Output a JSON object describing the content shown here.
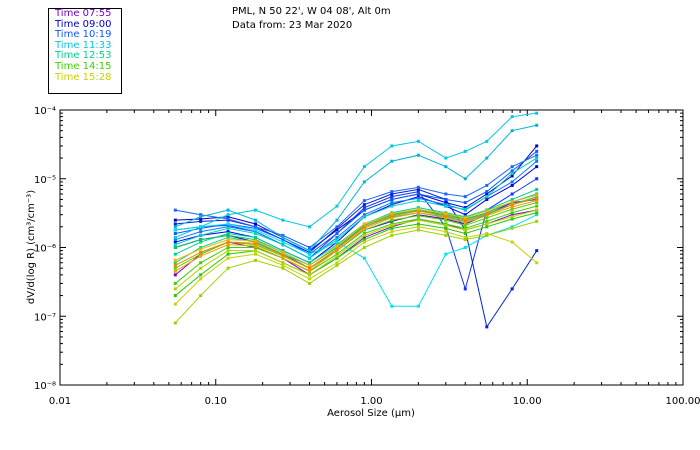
{
  "header": {
    "site": "PML, N 50 22', W 04 08', Alt 0m",
    "data_from": "Data from: 23 Mar 2020"
  },
  "legend": [
    {
      "label": "Time 07:55",
      "color": "#7a00c8"
    },
    {
      "label": "Time 09:00",
      "color": "#0000cc"
    },
    {
      "label": "Time 10:19",
      "color": "#0a5aff"
    },
    {
      "label": "Time 11:33",
      "color": "#00c8e6"
    },
    {
      "label": "Time 12:53",
      "color": "#00d28c"
    },
    {
      "label": "Time 14:15",
      "color": "#3cd200"
    },
    {
      "label": "Time 15:28",
      "color": "#c8d200"
    }
  ],
  "chart_data": {
    "type": "line",
    "title": "PML, N 50 22', W 04 08', Alt 0m",
    "subtitle": "Data from: 23 Mar 2020",
    "xlabel": "Aerosol Size (µm)",
    "ylabel": "dV/d(log R) (cm³/cm⁻³)",
    "xscale": "log",
    "yscale": "log",
    "xlim": [
      0.01,
      100
    ],
    "ylim": [
      1e-08,
      0.0001
    ],
    "x_ticks": [
      0.01,
      0.1,
      1,
      10,
      100
    ],
    "x_tick_labels": [
      "0.01",
      "0.10",
      "1.00",
      "10.00",
      "100.00"
    ],
    "y_ticks": [
      1e-08,
      1e-07,
      1e-06,
      1e-05,
      0.0001
    ],
    "y_tick_labels": [
      "10⁻⁸",
      "10⁻⁷",
      "10⁻⁶",
      "10⁻⁵",
      "10⁻⁴"
    ],
    "size_bins": [
      0.055,
      0.08,
      0.12,
      0.18,
      0.27,
      0.4,
      0.6,
      0.9,
      1.35,
      2.0,
      3.0,
      4.0,
      5.5,
      8.0,
      11.5
    ],
    "series": [
      {
        "name": "Time 07:55",
        "color": "#7a00c8",
        "values": [
          4e-07,
          8e-07,
          1.2e-06,
          1e-06,
          7e-07,
          4e-07,
          7e-07,
          1.4e-06,
          2e-06,
          2.6e-06,
          2.2e-06,
          1.8e-06,
          2.2e-06,
          3e-06,
          3.5e-06
        ]
      },
      {
        "name": "Time 07:55",
        "color": "#3a00d8",
        "values": [
          1e-06,
          1.3e-06,
          1.5e-06,
          1.2e-06,
          8e-07,
          5e-07,
          9e-07,
          1.8e-06,
          2.4e-06,
          3e-06,
          2.6e-06,
          2.2e-06,
          3e-06,
          4.5e-06,
          5e-06
        ]
      },
      {
        "name": "Time 09:00",
        "color": "#0000cc",
        "values": [
          2.5e-06,
          2.6e-06,
          2.8e-06,
          2.2e-06,
          1.4e-06,
          9e-07,
          1.8e-06,
          3.5e-06,
          5e-06,
          6e-06,
          4.5e-06,
          3.8e-06,
          6e-06,
          1.1e-05,
          3e-05
        ]
      },
      {
        "name": "Time 09:00",
        "color": "#0000ee",
        "values": [
          1.2e-06,
          1.5e-06,
          1.7e-06,
          1.4e-06,
          9e-07,
          6e-07,
          1.2e-06,
          2.8e-06,
          4.2e-06,
          5.5e-06,
          4e-06,
          3e-06,
          5e-06,
          8e-06,
          1.5e-05
        ]
      },
      {
        "name": "Time 09:00",
        "color": "#1430ff",
        "values": [
          1.8e-06,
          2e-06,
          2.1e-06,
          1.7e-06,
          1.1e-06,
          7e-07,
          1.6e-06,
          3.8e-06,
          5.5e-06,
          6.5e-06,
          2e-06,
          2.5e-07,
          3.5e-06,
          6e-06,
          1e-05
        ]
      },
      {
        "name": "Time 09:00",
        "color": "#0020e0",
        "values": [
          2.2e-06,
          2.4e-06,
          2.5e-06,
          2e-06,
          1.3e-06,
          8.5e-07,
          1.9e-06,
          4.2e-06,
          6e-06,
          7e-06,
          5e-06,
          1.8e-06,
          7e-08,
          2.5e-07,
          9e-07
        ]
      },
      {
        "name": "Time 10:19",
        "color": "#0a5aff",
        "values": [
          1.6e-06,
          1.9e-06,
          2.2e-06,
          1.9e-06,
          1.3e-06,
          8e-07,
          1.6e-06,
          3.5e-06,
          5e-06,
          6e-06,
          5e-06,
          4.5e-06,
          6.5e-06,
          1.3e-05,
          2.5e-05
        ]
      },
      {
        "name": "Time 10:19",
        "color": "#0a78ff",
        "values": [
          1.3e-06,
          1.7e-06,
          2e-06,
          1.7e-06,
          1.1e-06,
          7e-07,
          1.4e-06,
          3e-06,
          4.5e-06,
          5.2e-06,
          4.2e-06,
          3.5e-06,
          5.5e-06,
          9e-06,
          1.8e-05
        ]
      },
      {
        "name": "Time 10:19",
        "color": "#1e64ff",
        "values": [
          3.5e-06,
          3e-06,
          2.6e-06,
          2e-06,
          1.5e-06,
          1e-06,
          2e-06,
          4.8e-06,
          6.5e-06,
          7.5e-06,
          6e-06,
          5.5e-06,
          8e-06,
          1.5e-05,
          2.2e-05
        ]
      },
      {
        "name": "Time 11:33",
        "color": "#00c8e6",
        "values": [
          1.4e-06,
          2e-06,
          3e-06,
          3.5e-06,
          2.5e-06,
          2e-06,
          4e-06,
          1.5e-05,
          3e-05,
          3.5e-05,
          2e-05,
          2.5e-05,
          3.5e-05,
          8e-05,
          9e-05
        ]
      },
      {
        "name": "Time 11:33",
        "color": "#00b4dc",
        "values": [
          2e-06,
          2.8e-06,
          3.5e-06,
          2.5e-06,
          1.4e-06,
          9e-07,
          2.5e-06,
          9e-06,
          1.8e-05,
          2.2e-05,
          1.5e-05,
          1e-05,
          2e-05,
          5e-05,
          6e-05
        ]
      },
      {
        "name": "Time 11:33",
        "color": "#00e1f0",
        "values": [
          1.8e-06,
          2e-06,
          2.2e-06,
          1.8e-06,
          1.2e-06,
          8e-07,
          1.2e-06,
          7e-07,
          1.4e-07,
          1.4e-07,
          8e-07,
          1e-06,
          1.5e-06,
          2e-06,
          3e-06
        ]
      },
      {
        "name": "Time 11:33",
        "color": "#00d2c8",
        "values": [
          1.1e-06,
          1.5e-06,
          1.9e-06,
          1.6e-06,
          1.1e-06,
          7e-07,
          1.3e-06,
          2.8e-06,
          4e-06,
          4.8e-06,
          4e-06,
          3.6e-06,
          5.5e-06,
          1.2e-05,
          2e-05
        ]
      },
      {
        "name": "Time 12:53",
        "color": "#00d28c",
        "values": [
          8e-07,
          1.2e-06,
          1.6e-06,
          1.4e-06,
          9e-07,
          6e-07,
          1.1e-06,
          2.2e-06,
          3.2e-06,
          3.8e-06,
          3.2e-06,
          2.8e-06,
          3.5e-06,
          5e-06,
          7e-06
        ]
      },
      {
        "name": "Time 12:53",
        "color": "#00dc78",
        "values": [
          6e-07,
          1e-06,
          1.4e-06,
          1.2e-06,
          8e-07,
          5.5e-07,
          1e-06,
          2e-06,
          2.8e-06,
          3.2e-06,
          2.8e-06,
          2.4e-06,
          3e-06,
          4.2e-06,
          5.5e-06
        ]
      },
      {
        "name": "Time 12:53",
        "color": "#00c864",
        "values": [
          1e-06,
          1.3e-06,
          1.5e-06,
          1.3e-06,
          8.5e-07,
          5.5e-07,
          1e-06,
          2.1e-06,
          3e-06,
          3.5e-06,
          3e-06,
          2.6e-06,
          3.2e-06,
          4.6e-06,
          6e-06
        ]
      },
      {
        "name": "Time 14:15",
        "color": "#3cd200",
        "values": [
          3e-07,
          6e-07,
          1e-06,
          1e-06,
          7e-07,
          4.5e-07,
          8e-07,
          1.6e-06,
          2.2e-06,
          2.6e-06,
          2.2e-06,
          1.9e-06,
          2.4e-06,
          3.2e-06,
          4e-06
        ]
      },
      {
        "name": "Time 14:15",
        "color": "#5ad200",
        "values": [
          5e-07,
          8e-07,
          1.2e-06,
          1.1e-06,
          7.5e-07,
          5e-07,
          9e-07,
          1.8e-06,
          2.5e-06,
          2.9e-06,
          2.5e-06,
          2.1e-06,
          2.7e-06,
          3.6e-06,
          4.5e-06
        ]
      },
      {
        "name": "Time 14:15",
        "color": "#28c800",
        "values": [
          2e-07,
          4e-07,
          8e-07,
          9e-07,
          6e-07,
          4e-07,
          7e-07,
          1.3e-06,
          1.9e-06,
          2.2e-06,
          1.9e-06,
          1.6e-06,
          2e-06,
          2.6e-06,
          3.2e-06
        ]
      },
      {
        "name": "Time 15:28",
        "color": "#c8d200",
        "values": [
          1.5e-07,
          3.5e-07,
          7e-07,
          8e-07,
          5.5e-07,
          3.5e-07,
          6e-07,
          1.2e-06,
          1.7e-06,
          2e-06,
          1.7e-06,
          1.4e-06,
          1.6e-06,
          1.2e-06,
          6e-07
        ]
      },
      {
        "name": "Time 15:28",
        "color": "#b4d200",
        "values": [
          2.5e-07,
          5e-07,
          9e-07,
          9e-07,
          6e-07,
          4e-07,
          7.5e-07,
          1.5e-06,
          2.1e-06,
          2.5e-06,
          2.1e-06,
          1.8e-06,
          2.2e-06,
          2.8e-06,
          3.5e-06
        ]
      },
      {
        "name": "Time 15:28",
        "color": "#9bd200",
        "values": [
          8e-08,
          2e-07,
          5e-07,
          6.5e-07,
          5e-07,
          3e-07,
          5.5e-07,
          1e-06,
          1.5e-06,
          1.8e-06,
          1.5e-06,
          1.3e-06,
          1.5e-06,
          1.9e-06,
          2.4e-06
        ]
      },
      {
        "name": "Time 15:28",
        "color": "#f0a000",
        "values": [
          4.5e-07,
          7.5e-07,
          1.1e-06,
          1.05e-06,
          7e-07,
          4.6e-07,
          9e-07,
          1.9e-06,
          2.7e-06,
          3.2e-06,
          2.7e-06,
          2.3e-06,
          2.9e-06,
          3.9e-06,
          4.8e-06
        ]
      },
      {
        "name": "Time 15:28",
        "color": "#f08200",
        "values": [
          5.5e-07,
          8.5e-07,
          1.2e-06,
          1.15e-06,
          7.8e-07,
          5e-07,
          9.5e-07,
          2e-06,
          2.9e-06,
          3.4e-06,
          2.9e-06,
          2.5e-06,
          3.1e-06,
          4.2e-06,
          5.2e-06
        ]
      },
      {
        "name": "Time 15:28",
        "color": "#f0b400",
        "values": [
          6.5e-07,
          9.5e-07,
          1.3e-06,
          1.25e-06,
          8.5e-07,
          5.5e-07,
          1.05e-06,
          2.2e-06,
          3.1e-06,
          3.6e-06,
          3.1e-06,
          2.7e-06,
          3.4e-06,
          4.6e-06,
          5.8e-06
        ]
      }
    ]
  }
}
